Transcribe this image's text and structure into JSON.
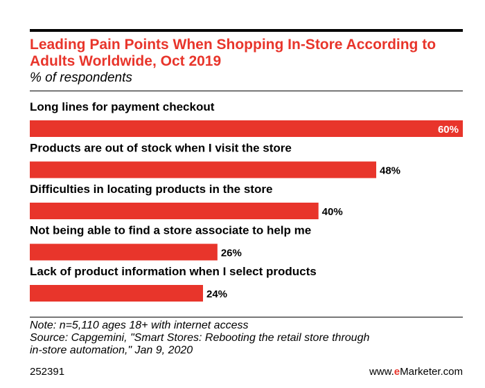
{
  "header": {
    "title": "Leading Pain Points When Shopping In-Store According to Adults Worldwide, Oct 2019",
    "subtitle": "% of respondents"
  },
  "chart_data": {
    "type": "bar",
    "orientation": "horizontal",
    "categories": [
      "Long lines for payment checkout",
      "Products are out of stock when I visit the store",
      "Difficulties in locating products in the store",
      "Not being able to find a store associate to help me",
      "Lack of product information when I select products"
    ],
    "values": [
      60,
      48,
      40,
      26,
      24
    ],
    "value_labels": [
      "60%",
      "48%",
      "40%",
      "26%",
      "24%"
    ],
    "xlim": [
      0,
      60
    ],
    "grid": false,
    "legend": "none",
    "bar_color": "#e8352b"
  },
  "footer": {
    "note_lines": [
      "Note: n=5,110 ages 18+ with internet access",
      "Source: Capgemini, \"Smart Stores: Rebooting the retail store through",
      "in-store automation,\" Jan 9, 2020"
    ],
    "chart_id": "252391",
    "brand_prefix": "www.",
    "brand_accent": "e",
    "brand_suffix": "Marketer.com"
  },
  "colors": {
    "accent": "#e8352b",
    "text": "#000000"
  }
}
